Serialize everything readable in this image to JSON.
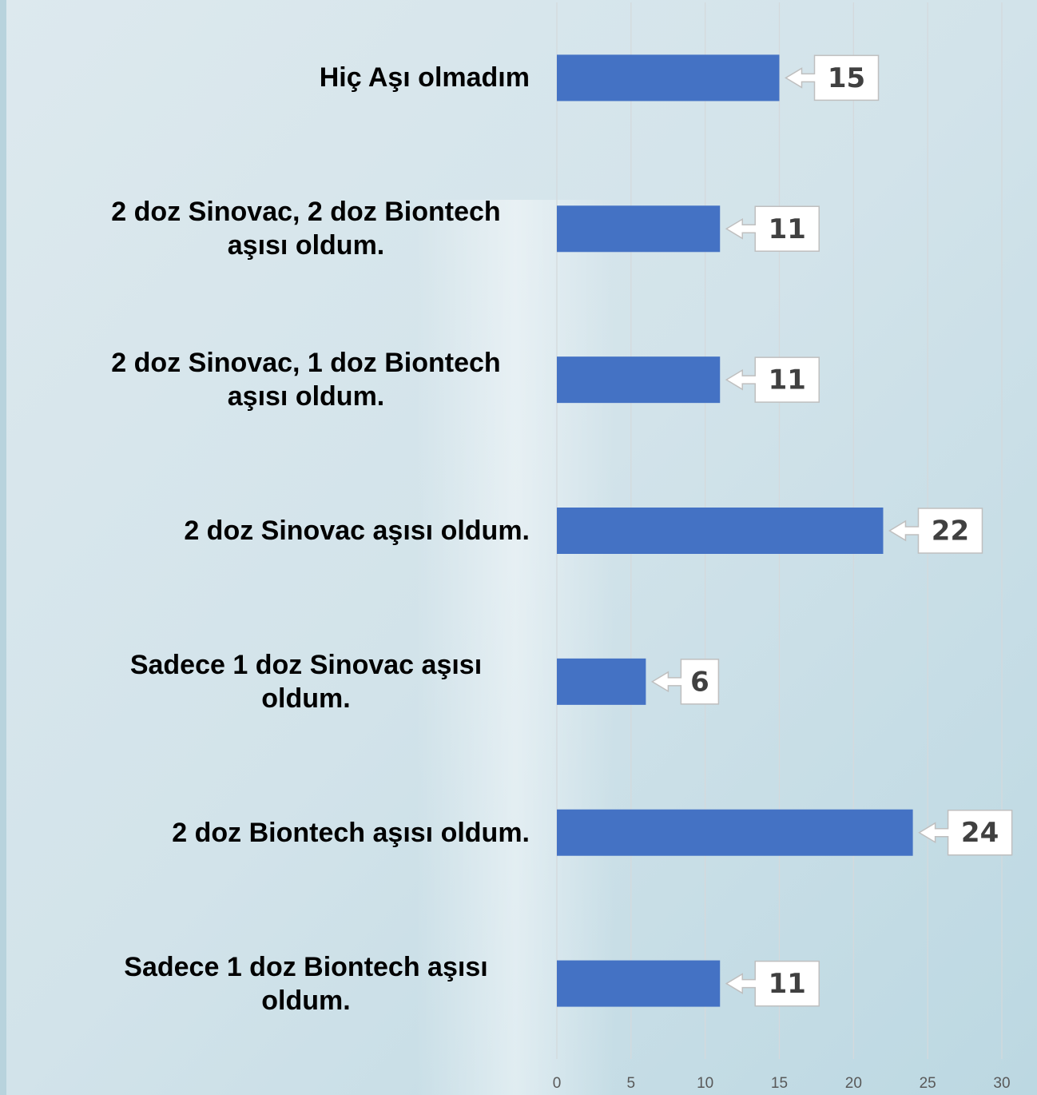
{
  "chart_data": {
    "type": "bar",
    "orientation": "horizontal",
    "categories": [
      "Hiç Aşı olmadım",
      "2 doz Sinovac, 2 doz Biontech aşısı oldum.",
      "2 doz Sinovac, 1 doz Biontech aşısı oldum.",
      "2 doz Sinovac aşısı oldum.",
      "Sadece 1 doz Sinovac aşısı oldum.",
      "2 doz Biontech aşısı oldum.",
      "Sadece 1 doz Biontech aşısı oldum."
    ],
    "values": [
      15,
      11,
      11,
      22,
      6,
      24,
      11
    ],
    "color": "#4472c4",
    "xlim": [
      0,
      30
    ],
    "xticks": [
      0,
      5,
      10,
      15,
      20,
      25,
      30
    ],
    "grid": true
  }
}
